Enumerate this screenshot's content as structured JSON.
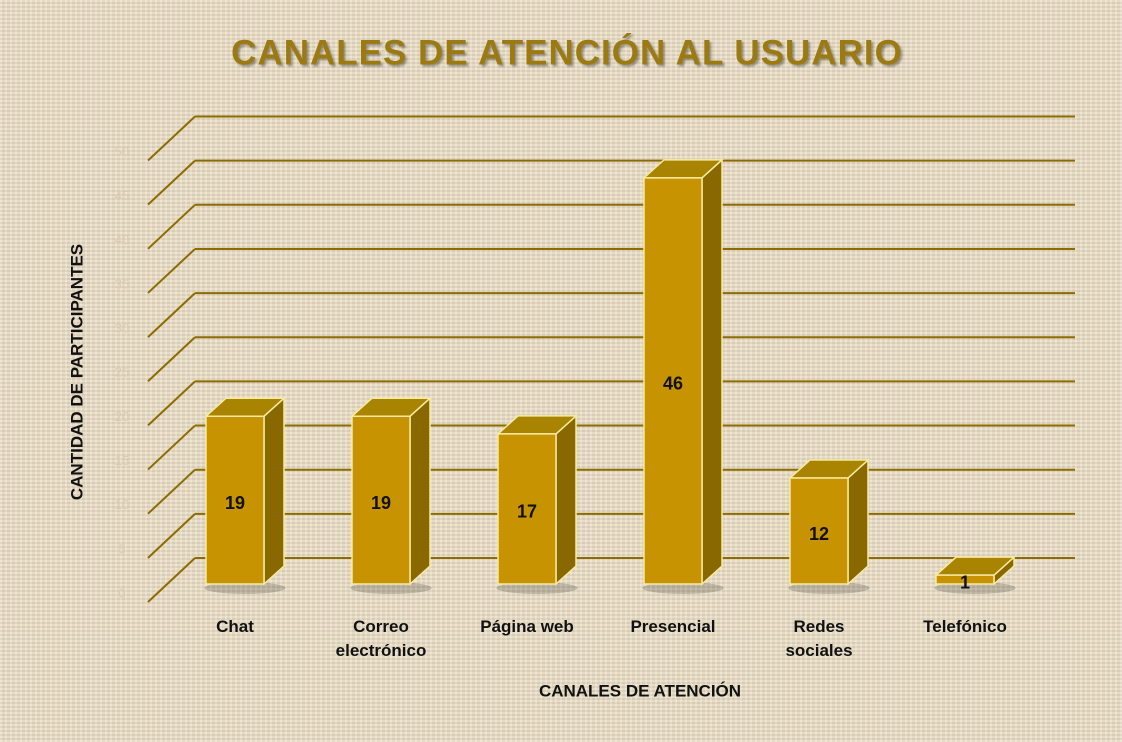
{
  "chart_data": {
    "type": "bar3d",
    "title": "CANALES DE ATENCIÓN AL USUARIO",
    "x_label": "CANALES DE ATENCIÓN",
    "y_label": "CANTIDAD DE PARTICIPANTES",
    "categories": [
      "Chat",
      "Correo electrónico",
      "Página web",
      "Presencial",
      "Redes sociales",
      "Telefónico"
    ],
    "values": [
      19,
      19,
      17,
      46,
      12,
      1
    ],
    "color": "#c89300",
    "ylim": [
      0,
      50
    ],
    "yticks": [
      0,
      5,
      10,
      15,
      20,
      25,
      30,
      35,
      40,
      45,
      50
    ],
    "grid": true
  }
}
